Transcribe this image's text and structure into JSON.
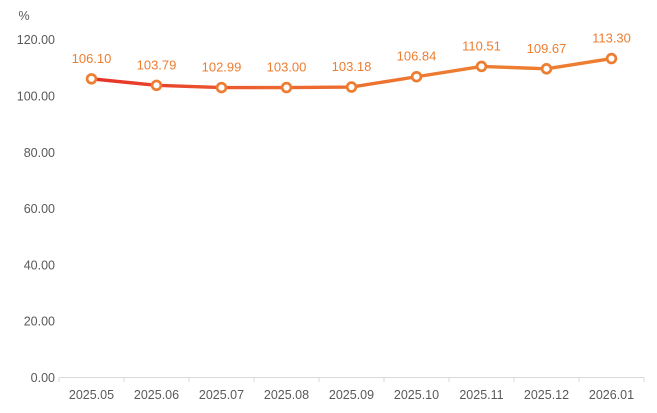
{
  "chart_data": {
    "type": "line",
    "title": "",
    "unit_label": "%",
    "categories": [
      "2025.05",
      "2025.06",
      "2025.07",
      "2025.08",
      "2025.09",
      "2025.10",
      "2025.11",
      "2025.12",
      "2026.01"
    ],
    "series": [
      {
        "name": "value",
        "values": [
          106.1,
          103.79,
          102.99,
          103.0,
          103.18,
          106.84,
          110.51,
          109.67,
          113.3
        ],
        "data_labels": [
          "106.10",
          "103.79",
          "102.99",
          "103.00",
          "103.18",
          "106.84",
          "110.51",
          "109.67",
          "113.30"
        ]
      }
    ],
    "ylim": [
      0,
      120
    ],
    "ytick_step": 20,
    "ytick_labels": [
      "0.00",
      "20.00",
      "40.00",
      "60.00",
      "80.00",
      "100.00",
      "120.00"
    ],
    "grid": false,
    "legend_position": "none",
    "colors": {
      "line_gradient_start": "#e63129",
      "line_gradient_mid": "#ec6530",
      "line_gradient_end": "#ed7d31",
      "marker_stroke": "#ed7d31",
      "marker_fill": "#ffffff",
      "data_label": "#ed7d31",
      "axis_text": "#595959",
      "axis_line": "#d9d9d9"
    }
  }
}
